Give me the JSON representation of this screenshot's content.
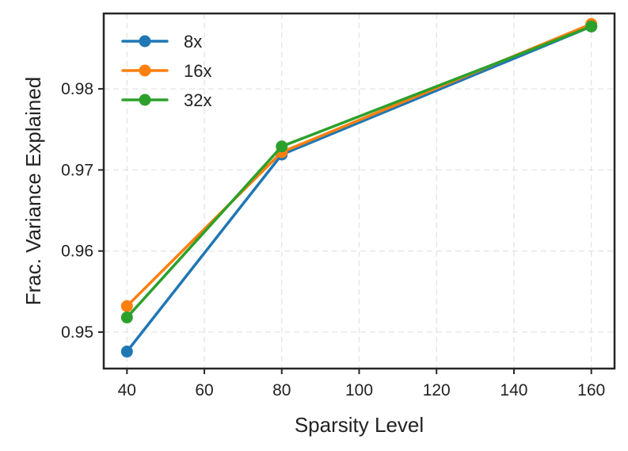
{
  "chart_data": {
    "type": "line",
    "title": "",
    "xlabel": "Sparsity Level",
    "ylabel": "Frac. Variance Explained",
    "x": [
      40,
      80,
      160
    ],
    "xlim": [
      34,
      166
    ],
    "ylim": [
      0.9455,
      0.9893
    ],
    "xticks": [
      40,
      60,
      80,
      100,
      120,
      140,
      160
    ],
    "yticks": [
      0.95,
      0.96,
      0.97,
      0.98
    ],
    "ytick_labels": [
      "0.95",
      "0.96",
      "0.97",
      "0.98"
    ],
    "grid": true,
    "legend_position": "top-left",
    "series": [
      {
        "name": "8x",
        "color": "#1f77b4",
        "values": [
          0.9476,
          0.9719,
          0.9877
        ]
      },
      {
        "name": "16x",
        "color": "#ff7f0e",
        "values": [
          0.9532,
          0.9722,
          0.988
        ]
      },
      {
        "name": "32x",
        "color": "#2ca02c",
        "values": [
          0.9518,
          0.9729,
          0.9877
        ]
      }
    ]
  }
}
